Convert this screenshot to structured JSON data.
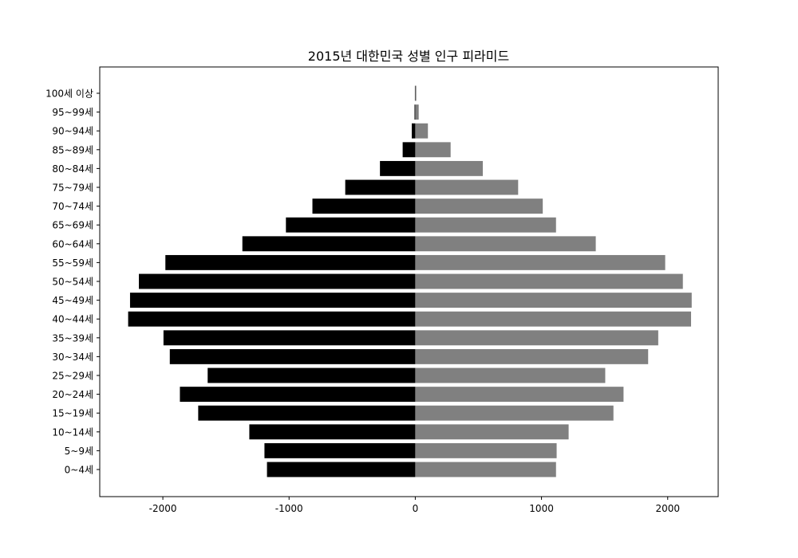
{
  "chart_data": {
    "type": "bar",
    "orientation": "horizontal",
    "title": "2015년 대한민국 성별 인구 피라미드",
    "xlabel": "",
    "ylabel": "",
    "xlim": [
      -2500,
      2400
    ],
    "xticks": [
      -2000,
      -1000,
      0,
      1000,
      2000
    ],
    "xtick_labels": [
      "-2000",
      "-1000",
      "0",
      "1000",
      "2000"
    ],
    "grid": false,
    "categories": [
      "0~4세",
      "5~9세",
      "10~14세",
      "15~19세",
      "20~24세",
      "25~29세",
      "30~34세",
      "35~39세",
      "40~44세",
      "45~49세",
      "50~54세",
      "55~59세",
      "60~64세",
      "65~69세",
      "70~74세",
      "75~79세",
      "80~84세",
      "85~89세",
      "90~94세",
      "95~99세",
      "100세 이상"
    ],
    "series": [
      {
        "color": "#000000",
        "values": [
          -1175,
          -1195,
          -1315,
          -1720,
          -1865,
          -1645,
          -1945,
          -1995,
          -2275,
          -2260,
          -2190,
          -1980,
          -1370,
          -1025,
          -815,
          -555,
          -280,
          -100,
          -28,
          -6,
          -3
        ]
      },
      {
        "color": "#808080",
        "values": [
          1115,
          1120,
          1215,
          1570,
          1650,
          1505,
          1845,
          1925,
          2185,
          2190,
          2120,
          1980,
          1430,
          1115,
          1010,
          815,
          535,
          280,
          100,
          27,
          8
        ]
      }
    ]
  }
}
